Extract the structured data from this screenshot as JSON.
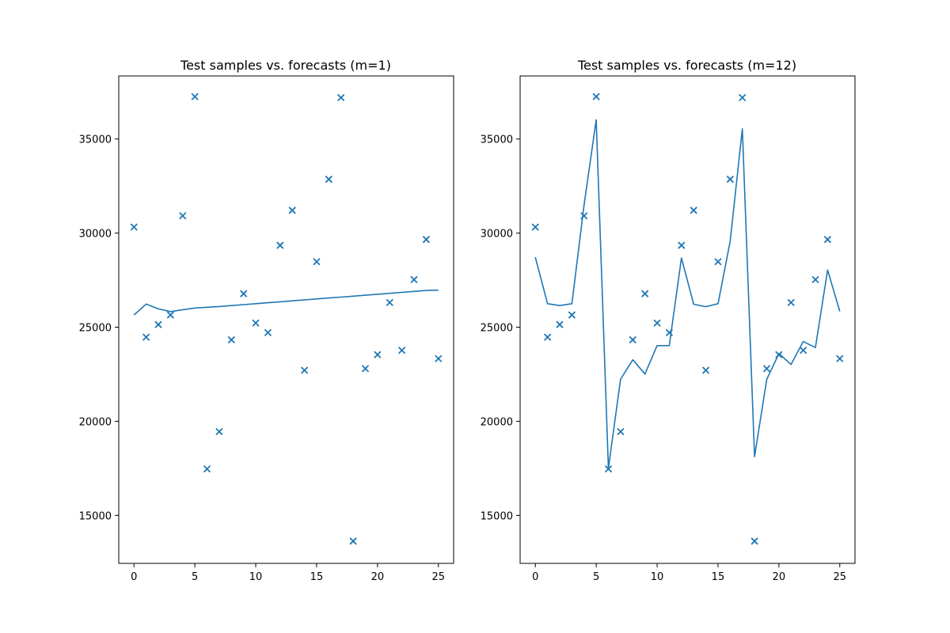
{
  "colors": {
    "series": "#1f77b4",
    "axes": "#000000",
    "background": "#ffffff"
  },
  "chart_data": [
    {
      "type": "line",
      "title": "Test samples vs. forecasts (m=1)",
      "xlabel": "",
      "ylabel": "",
      "xlim": [
        -1.25,
        26.25
      ],
      "ylim": [
        12450,
        38350
      ],
      "xticks": [
        0,
        5,
        10,
        15,
        20,
        25
      ],
      "yticks": [
        15000,
        20000,
        25000,
        30000,
        35000
      ],
      "grid": false,
      "series": [
        {
          "kind": "scatter",
          "marker": "x",
          "x": [
            0,
            1,
            2,
            3,
            4,
            5,
            6,
            7,
            8,
            9,
            10,
            11,
            12,
            13,
            14,
            15,
            16,
            17,
            18,
            19,
            20,
            21,
            22,
            23,
            24,
            25
          ],
          "y": [
            30320,
            24470,
            25140,
            25650,
            30920,
            37250,
            17470,
            19450,
            24330,
            26780,
            25220,
            24710,
            29350,
            31210,
            22710,
            28480,
            32860,
            37200,
            13630,
            22800,
            23540,
            26310,
            23770,
            27530,
            29660,
            23330
          ]
        },
        {
          "kind": "line",
          "x": [
            0,
            1,
            2,
            3,
            4,
            5,
            6,
            7,
            8,
            9,
            10,
            11,
            12,
            13,
            14,
            15,
            16,
            17,
            18,
            19,
            20,
            21,
            22,
            23,
            24,
            25
          ],
          "y": [
            25650,
            26230,
            25970,
            25830,
            25930,
            26020,
            26060,
            26100,
            26150,
            26200,
            26250,
            26300,
            26350,
            26400,
            26450,
            26500,
            26550,
            26600,
            26650,
            26700,
            26750,
            26800,
            26850,
            26900,
            26950,
            26970
          ]
        }
      ]
    },
    {
      "type": "line",
      "title": "Test samples vs. forecasts (m=12)",
      "xlabel": "",
      "ylabel": "",
      "xlim": [
        -1.25,
        26.25
      ],
      "ylim": [
        12450,
        38350
      ],
      "xticks": [
        0,
        5,
        10,
        15,
        20,
        25
      ],
      "yticks": [
        15000,
        20000,
        25000,
        30000,
        35000
      ],
      "grid": false,
      "series": [
        {
          "kind": "scatter",
          "marker": "x",
          "x": [
            0,
            1,
            2,
            3,
            4,
            5,
            6,
            7,
            8,
            9,
            10,
            11,
            12,
            13,
            14,
            15,
            16,
            17,
            18,
            19,
            20,
            21,
            22,
            23,
            24,
            25
          ],
          "y": [
            30320,
            24470,
            25140,
            25650,
            30920,
            37250,
            17470,
            19450,
            24330,
            26780,
            25220,
            24710,
            29350,
            31210,
            22710,
            28480,
            32860,
            37200,
            13630,
            22800,
            23540,
            26310,
            23770,
            27530,
            29660,
            23330
          ]
        },
        {
          "kind": "line",
          "x": [
            0,
            1,
            2,
            3,
            4,
            5,
            6,
            7,
            8,
            9,
            10,
            11,
            12,
            13,
            14,
            15,
            16,
            17,
            18,
            19,
            20,
            21,
            22,
            23,
            24,
            25
          ],
          "y": [
            28720,
            26250,
            26150,
            26250,
            31500,
            36020,
            17510,
            22240,
            23270,
            22510,
            24020,
            24020,
            28680,
            26220,
            26090,
            26250,
            29560,
            35540,
            18120,
            22220,
            23600,
            23020,
            24240,
            23920,
            28040,
            25840
          ]
        }
      ]
    }
  ]
}
